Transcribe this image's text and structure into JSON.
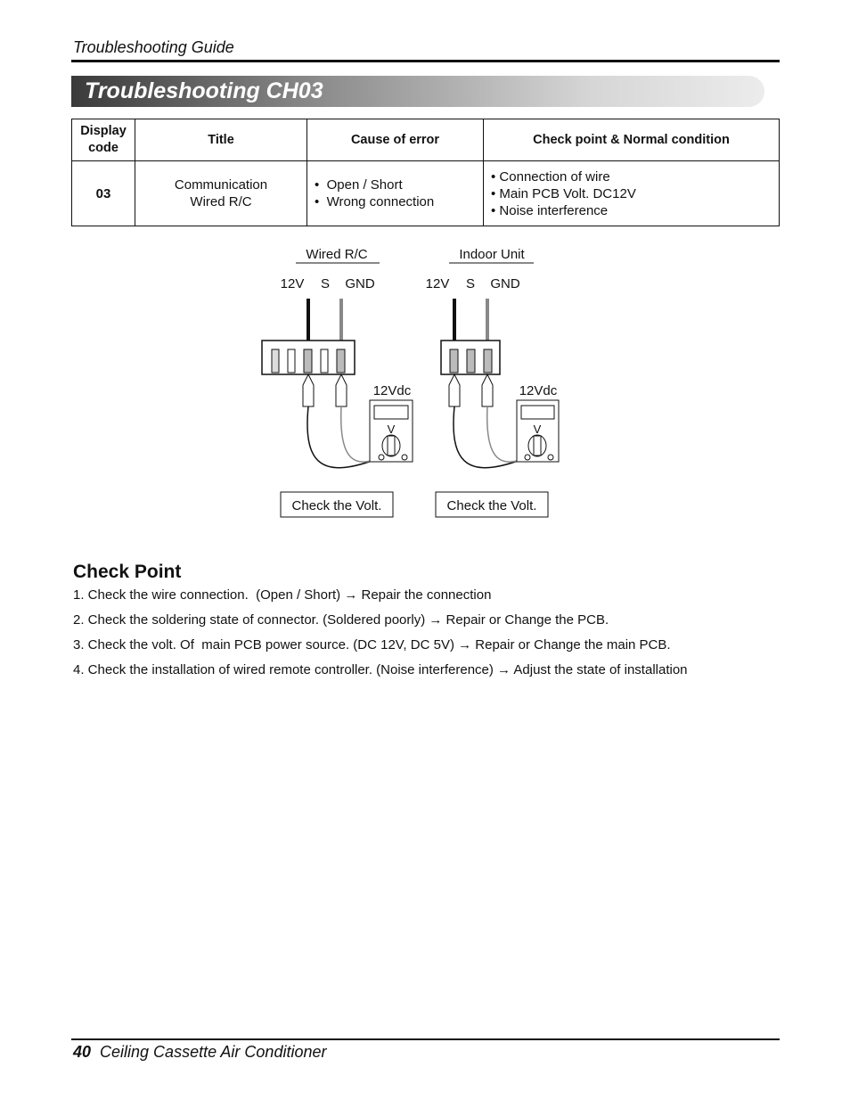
{
  "header": {
    "section": "Troubleshooting Guide",
    "title": "Troubleshooting CH03"
  },
  "table": {
    "columns": [
      [
        "Display",
        "code"
      ],
      "Title",
      "Cause of error",
      "Check point & Normal condition"
    ],
    "rows": [
      [
        "03",
        [
          "Communication",
          "Wired R/C"
        ],
        [
          "Open / Short",
          "Wrong connection"
        ],
        [
          "Connection of wire",
          "Main PCB Volt. DC12V",
          "Noise interference"
        ]
      ]
    ]
  },
  "diagram": {
    "units": [
      {
        "label": "Wired R/C",
        "pins": [
          "12V",
          "S",
          "GND"
        ],
        "meter_label": "12Vdc",
        "meter_symbol": "V",
        "caption": "Check the Volt."
      },
      {
        "label": "Indoor Unit",
        "pins": [
          "12V",
          "S",
          "GND"
        ],
        "meter_label": "12Vdc",
        "meter_symbol": "V",
        "caption": "Check the Volt."
      }
    ]
  },
  "check_point": {
    "heading": "Check Point",
    "items": [
      "1. Check the wire connection.  (Open / Short) → Repair the connection",
      "2. Check the soldering state of connector. (Soldered poorly) → Repair or Change the PCB.",
      "3. Check the volt. Of  main PCB power source. (DC 12V, DC 5V) → Repair or Change the main PCB.",
      "4. Check the installation of wired remote controller. (Noise interference) → Adjust the state of installation"
    ]
  },
  "footer": {
    "page": "40",
    "text": "Ceiling Cassette Air Conditioner"
  }
}
